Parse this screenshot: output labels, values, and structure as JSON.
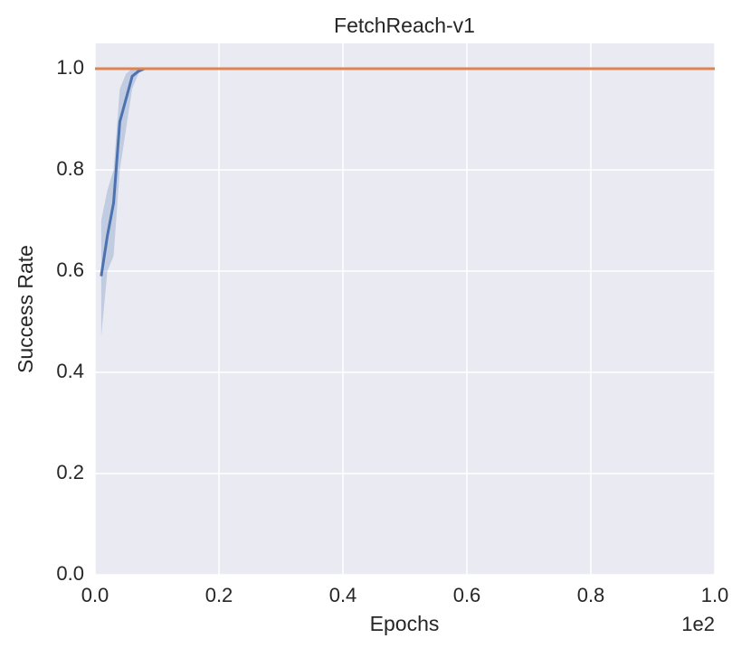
{
  "chart_data": {
    "type": "line",
    "title": "FetchReach-v1",
    "x_label": "Epochs",
    "y_label": "Success Rate",
    "x_offset_label": "1e2",
    "xlim": [
      0,
      1
    ],
    "ylim": [
      0,
      1.05
    ],
    "xticks": [
      {
        "value": 0,
        "label": "0.0"
      },
      {
        "value": 0.2,
        "label": "0.2"
      },
      {
        "value": 0.4,
        "label": "0.4"
      },
      {
        "value": 0.6,
        "label": "0.6"
      },
      {
        "value": 0.8,
        "label": "0.8"
      },
      {
        "value": 1,
        "label": "1.0"
      }
    ],
    "yticks": [
      {
        "value": 0,
        "label": "0.0"
      },
      {
        "value": 0.2,
        "label": "0.2"
      },
      {
        "value": 0.4,
        "label": "0.4"
      },
      {
        "value": 0.6,
        "label": "0.6"
      },
      {
        "value": 0.8,
        "label": "0.8"
      },
      {
        "value": 1,
        "label": "1.0"
      }
    ],
    "grid": true,
    "background": "#eaeaf2",
    "series": [
      {
        "color": "#4c72b0",
        "x": [
          0.01,
          0.02,
          0.03,
          0.04,
          0.05,
          0.06,
          0.07,
          0.08,
          1.0
        ],
        "values": [
          0.59,
          0.67,
          0.735,
          0.895,
          0.94,
          0.985,
          0.995,
          1.0,
          1.0
        ],
        "lower": [
          0.47,
          0.6,
          0.63,
          0.8,
          0.88,
          0.96,
          0.99,
          1.0,
          1.0
        ],
        "upper": [
          0.7,
          0.76,
          0.8,
          0.96,
          0.99,
          1.0,
          1.0,
          1.0,
          1.0
        ]
      },
      {
        "color": "#dd8452",
        "x": [
          0.0,
          1.0
        ],
        "values": [
          1.0,
          1.0
        ]
      }
    ]
  }
}
